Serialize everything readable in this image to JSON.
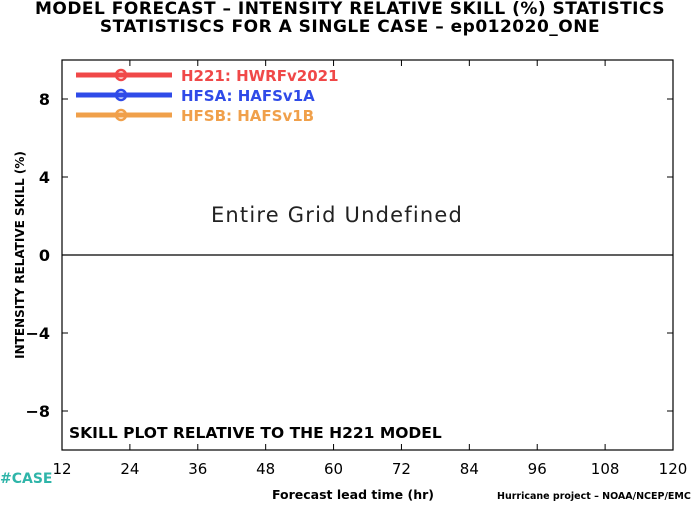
{
  "title_line1": "MODEL FORECAST – INTENSITY RELATIVE SKILL (%) STATISTICS",
  "title_line2": "STATISTISCS FOR A SINGLE CASE – ep012020_ONE",
  "footer_case": "#CASE",
  "footer_credit": "Hurricane project – NOAA/NCEP/EMC",
  "chart_data": {
    "type": "line",
    "title": "MODEL FORECAST – INTENSITY RELATIVE SKILL (%) STATISTICS",
    "subtitle": "STATISTISCS FOR A SINGLE CASE – ep012020_ONE",
    "xlabel": "Forecast lead time (hr)",
    "ylabel": "INTENSITY RELATIVE SKILL (%)",
    "xlim": [
      12,
      120
    ],
    "ylim": [
      -10,
      10
    ],
    "xticks": [
      12,
      24,
      36,
      48,
      60,
      72,
      84,
      96,
      108,
      120
    ],
    "yticks": [
      -8,
      -4,
      0,
      4,
      8
    ],
    "ytick_labels": [
      "−8",
      "−4",
      "0",
      "4",
      "8"
    ],
    "zero_line": true,
    "grid": false,
    "legend_position": "top-left",
    "series": [
      {
        "name": "H221: HWRFv2021",
        "color": "#f04848",
        "values": []
      },
      {
        "name": "HFSA: HAFSv1A",
        "color": "#2f4be8",
        "values": []
      },
      {
        "name": "HFSB: HAFSv1B",
        "color": "#f0a04a",
        "values": []
      }
    ],
    "annotations": {
      "center_text": "Entire Grid Undefined",
      "bottom_note": "SKILL PLOT RELATIVE TO THE H221 MODEL"
    }
  }
}
